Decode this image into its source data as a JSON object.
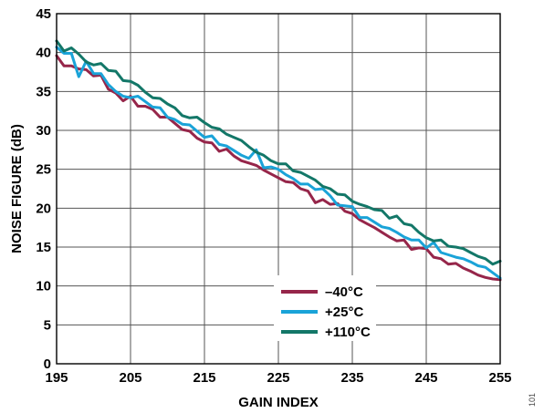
{
  "chart_data": {
    "type": "line",
    "xlabel": "GAIN INDEX",
    "ylabel": "NOISE FIGURE (dB)",
    "xlim": [
      195,
      255
    ],
    "ylim": [
      0,
      45
    ],
    "x_ticks": [
      "195",
      "205",
      "215",
      "225",
      "235",
      "245",
      "255"
    ],
    "x_tick_values": [
      195,
      205,
      215,
      225,
      235,
      245,
      255
    ],
    "y_ticks": [
      "0",
      "5",
      "10",
      "15",
      "20",
      "25",
      "30",
      "35",
      "40",
      "45"
    ],
    "y_tick_values": [
      0,
      5,
      10,
      15,
      20,
      25,
      30,
      35,
      40,
      45
    ],
    "grid": true,
    "legend_position": "bottom-center",
    "figure_id": "101",
    "series": [
      {
        "name": "–40°C",
        "color": "#96264a",
        "x": [
          195,
          196,
          197,
          198,
          199,
          200,
          201,
          202,
          203,
          204,
          205,
          206,
          207,
          208,
          209,
          210,
          211,
          212,
          213,
          214,
          215,
          216,
          217,
          218,
          219,
          220,
          221,
          222,
          223,
          224,
          225,
          226,
          227,
          228,
          229,
          230,
          231,
          232,
          233,
          234,
          235,
          236,
          237,
          238,
          239,
          240,
          241,
          242,
          243,
          244,
          245,
          246,
          247,
          248,
          249,
          250,
          251,
          252,
          253,
          254,
          255
        ],
        "y": [
          39.6,
          38.3,
          38.3,
          37.9,
          37.8,
          37.0,
          37.1,
          35.3,
          34.8,
          33.8,
          34.4,
          33.1,
          33.1,
          32.7,
          31.7,
          31.7,
          30.9,
          30.1,
          29.9,
          29.0,
          28.5,
          28.4,
          27.3,
          27.6,
          26.7,
          26.1,
          25.8,
          25.5,
          24.9,
          24.4,
          23.9,
          23.4,
          23.3,
          22.5,
          22.2,
          20.7,
          21.1,
          20.5,
          20.6,
          19.6,
          19.3,
          18.5,
          18.0,
          17.5,
          16.9,
          16.3,
          15.8,
          15.9,
          14.7,
          14.9,
          14.8,
          13.7,
          13.5,
          12.8,
          12.9,
          12.3,
          11.9,
          11.4,
          11.1,
          10.9,
          10.8
        ]
      },
      {
        "name": "+25°C",
        "color": "#1aa3d8",
        "x": [
          195,
          196,
          197,
          198,
          199,
          200,
          201,
          202,
          203,
          204,
          205,
          206,
          207,
          208,
          209,
          210,
          211,
          212,
          213,
          214,
          215,
          216,
          217,
          218,
          219,
          220,
          221,
          222,
          223,
          224,
          225,
          226,
          227,
          228,
          229,
          230,
          231,
          232,
          233,
          234,
          235,
          236,
          237,
          238,
          239,
          240,
          241,
          242,
          243,
          244,
          245,
          246,
          247,
          248,
          249,
          250,
          251,
          252,
          253,
          254,
          255
        ],
        "y": [
          40.7,
          39.9,
          39.9,
          36.9,
          38.9,
          37.3,
          37.3,
          35.9,
          35.0,
          34.4,
          34.2,
          34.4,
          33.7,
          33.0,
          32.9,
          31.7,
          31.4,
          30.8,
          30.7,
          29.9,
          29.1,
          29.3,
          28.2,
          28.0,
          27.4,
          26.8,
          26.4,
          27.5,
          25.2,
          25.3,
          25.0,
          24.3,
          23.8,
          23.1,
          23.1,
          22.4,
          22.5,
          21.6,
          20.4,
          20.3,
          20.2,
          18.8,
          18.8,
          18.2,
          17.6,
          17.4,
          16.9,
          16.3,
          15.9,
          15.9,
          14.9,
          15.6,
          14.3,
          14.0,
          13.7,
          13.5,
          13.1,
          12.6,
          12.4,
          11.7,
          11.0
        ]
      },
      {
        "name": "+110°C",
        "color": "#137768",
        "x": [
          195,
          196,
          197,
          198,
          199,
          200,
          201,
          202,
          203,
          204,
          205,
          206,
          207,
          208,
          209,
          210,
          211,
          212,
          213,
          214,
          215,
          216,
          217,
          218,
          219,
          220,
          221,
          222,
          223,
          224,
          225,
          226,
          227,
          228,
          229,
          230,
          231,
          232,
          233,
          234,
          235,
          236,
          237,
          238,
          239,
          240,
          241,
          242,
          243,
          244,
          245,
          246,
          247,
          248,
          249,
          250,
          251,
          252,
          253,
          254,
          255
        ],
        "y": [
          41.5,
          40.2,
          40.6,
          39.8,
          38.8,
          38.4,
          38.6,
          37.7,
          37.6,
          36.4,
          36.3,
          35.8,
          34.9,
          34.2,
          34.1,
          33.4,
          32.9,
          31.9,
          31.6,
          31.7,
          31.0,
          30.4,
          30.2,
          29.5,
          29.1,
          28.7,
          27.9,
          27.2,
          26.8,
          26.1,
          25.7,
          25.7,
          24.8,
          24.6,
          24.1,
          23.6,
          22.8,
          22.5,
          21.8,
          21.7,
          20.9,
          20.5,
          20.2,
          19.8,
          19.7,
          18.7,
          19.0,
          18.0,
          17.8,
          16.9,
          16.2,
          15.8,
          15.9,
          15.1,
          15.0,
          14.8,
          14.3,
          13.8,
          13.5,
          12.8,
          13.2
        ]
      }
    ]
  }
}
